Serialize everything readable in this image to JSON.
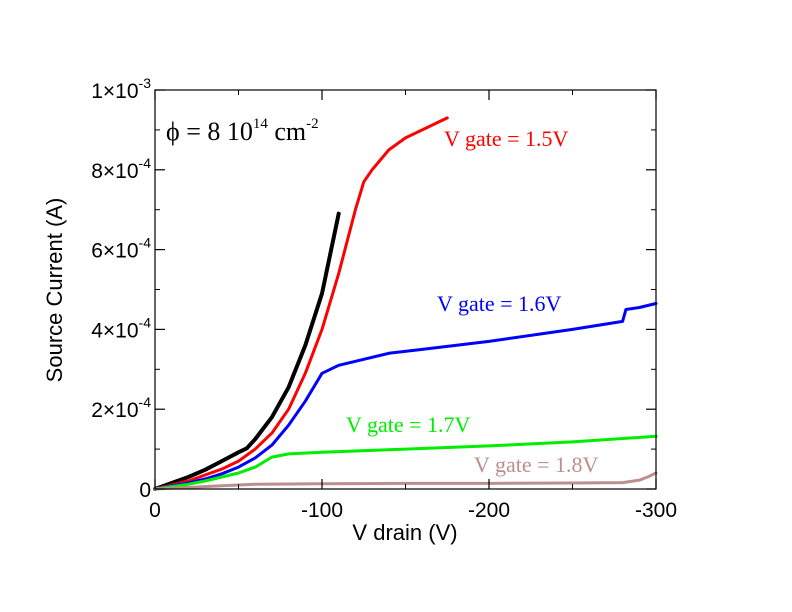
{
  "chart_data": {
    "type": "line",
    "title": "",
    "xlabel": "V drain (V)",
    "ylabel": "Source Current (A)",
    "xlim": [
      0,
      -300
    ],
    "ylim": [
      0,
      0.001
    ],
    "x_ticks": [
      {
        "value": 0,
        "label": "0"
      },
      {
        "value": -100,
        "label": "-100"
      },
      {
        "value": -200,
        "label": "-200"
      },
      {
        "value": -300,
        "label": "-300"
      }
    ],
    "y_ticks": [
      {
        "value": 0,
        "base": "0",
        "exp": ""
      },
      {
        "value": 0.0002,
        "base": "2×10",
        "exp": "-4"
      },
      {
        "value": 0.0004,
        "base": "4×10",
        "exp": "-4"
      },
      {
        "value": 0.0006,
        "base": "6×10",
        "exp": "-4"
      },
      {
        "value": 0.0008,
        "base": "8×10",
        "exp": "-4"
      },
      {
        "value": 0.001,
        "base": "1×10",
        "exp": "-3"
      }
    ],
    "fluence": {
      "phi": "ϕ",
      "text": " = 8 10",
      "exp": "14",
      "unit": " cm",
      "unit_exp": "-2"
    },
    "series": [
      {
        "name": "black",
        "label": "",
        "color": "#000000",
        "x": [
          0,
          -10,
          -20,
          -30,
          -40,
          -50,
          -55,
          -60,
          -70,
          -80,
          -90,
          -100,
          -110
        ],
        "y": [
          0,
          1.5e-05,
          3e-05,
          4.8e-05,
          7e-05,
          9.2e-05,
          0.000102,
          0.000125,
          0.00018,
          0.000255,
          0.00036,
          0.00049,
          0.00069
        ]
      },
      {
        "name": "V gate = 1.5V",
        "label": "V gate = 1.5V",
        "color": "#ff0000",
        "x": [
          0,
          -10,
          -20,
          -30,
          -40,
          -50,
          -60,
          -70,
          -80,
          -90,
          -100,
          -110,
          -120,
          -125,
          -130,
          -140,
          -150,
          -160,
          -170,
          -175
        ],
        "y": [
          0,
          1e-05,
          2e-05,
          3.5e-05,
          5e-05,
          7e-05,
          0.0001,
          0.00014,
          0.0002,
          0.00029,
          0.0004,
          0.00054,
          0.0007,
          0.00077,
          0.0008,
          0.00085,
          0.00088,
          0.0009,
          0.00092,
          0.00093
        ]
      },
      {
        "name": "V gate = 1.6V",
        "label": "V gate = 1.6V",
        "color": "#0000ff",
        "x": [
          0,
          -10,
          -20,
          -30,
          -40,
          -50,
          -60,
          -70,
          -80,
          -90,
          -100,
          -110,
          -120,
          -140,
          -160,
          -200,
          -250,
          -280,
          -282,
          -290,
          -300
        ],
        "y": [
          0,
          8e-06,
          1.5e-05,
          2.5e-05,
          3.8e-05,
          5.5e-05,
          7.8e-05,
          0.00011,
          0.00016,
          0.00022,
          0.00029,
          0.00031,
          0.00032,
          0.00034,
          0.00035,
          0.00037,
          0.0004,
          0.00042,
          0.00045,
          0.000455,
          0.000465
        ]
      },
      {
        "name": "V gate = 1.7V",
        "label": "V gate = 1.7V",
        "color": "#00ee00",
        "x": [
          0,
          -10,
          -20,
          -30,
          -40,
          -50,
          -60,
          -70,
          -80,
          -100,
          -150,
          -200,
          -250,
          -300
        ],
        "y": [
          0,
          6e-06,
          1.2e-05,
          2e-05,
          3e-05,
          4e-05,
          5.5e-05,
          8e-05,
          8.8e-05,
          9.2e-05,
          0.0001,
          0.000108,
          0.000118,
          0.000132
        ]
      },
      {
        "name": "V gate = 1.8V",
        "label": "V gate = 1.8V",
        "color": "#bc8f8f",
        "x": [
          0,
          -20,
          -40,
          -60,
          -100,
          -150,
          -200,
          -250,
          -280,
          -290,
          -295,
          -300
        ],
        "y": [
          0,
          4e-06,
          8e-06,
          1.2e-05,
          1.3e-05,
          1.4e-05,
          1.4e-05,
          1.5e-05,
          1.6e-05,
          2.2e-05,
          3e-05,
          4e-05
        ]
      }
    ]
  }
}
